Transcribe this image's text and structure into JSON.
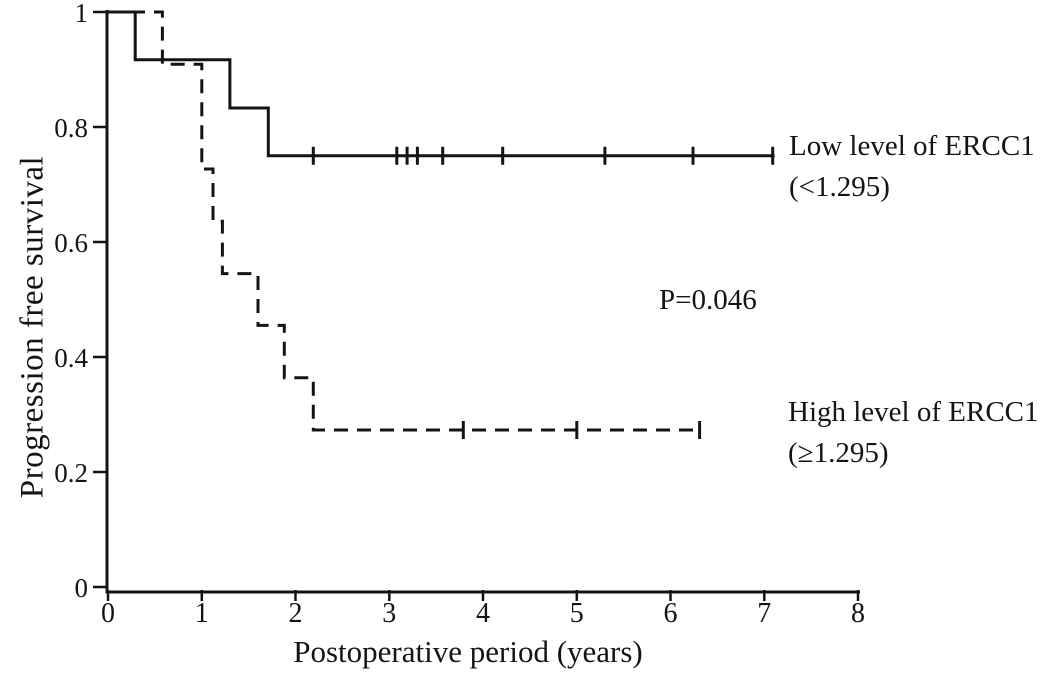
{
  "chart_data": {
    "type": "line",
    "subtype": "kaplan-meier-step",
    "title": "",
    "xlabel": "Postoperative period (years)",
    "ylabel": "Progression free survival",
    "xlim": [
      0,
      8
    ],
    "ylim": [
      0,
      1
    ],
    "x_ticks": [
      0,
      1,
      2,
      3,
      4,
      5,
      6,
      7,
      8
    ],
    "x_tick_labels": [
      "0",
      "1",
      "2",
      "3",
      "4",
      "5",
      "6",
      "7",
      "8"
    ],
    "y_ticks": [
      0,
      0.2,
      0.4,
      0.6,
      0.8,
      1
    ],
    "y_tick_labels": [
      "0",
      "0.2",
      "0.4",
      "0.6",
      "0.8",
      "1"
    ],
    "grid": false,
    "legend_position": "right-of-curves",
    "line_color": "#141414",
    "series": [
      {
        "name": "Low level of ERCC1 (<1.295)",
        "style": "solid",
        "steps": [
          [
            0,
            1
          ],
          [
            0.29,
            1
          ],
          [
            0.29,
            0.917
          ],
          [
            1.3,
            0.917
          ],
          [
            1.3,
            0.833
          ],
          [
            1.71,
            0.833
          ],
          [
            1.71,
            0.75
          ],
          [
            7.11,
            0.75
          ]
        ],
        "censor_level": 0.75,
        "censor_times": [
          2.19,
          3.08,
          3.19,
          3.3,
          3.57,
          4.21,
          5.3,
          6.24,
          7.09
        ]
      },
      {
        "name": "High level of ERCC1 (≥1.295)",
        "style": "dashed",
        "steps": [
          [
            0,
            1
          ],
          [
            0.58,
            1
          ],
          [
            0.58,
            0.909
          ],
          [
            1.0,
            0.909
          ],
          [
            1.0,
            0.727
          ],
          [
            1.12,
            0.727
          ],
          [
            1.12,
            0.636
          ],
          [
            1.22,
            0.636
          ],
          [
            1.22,
            0.545
          ],
          [
            1.6,
            0.545
          ],
          [
            1.6,
            0.455
          ],
          [
            1.88,
            0.455
          ],
          [
            1.88,
            0.364
          ],
          [
            2.19,
            0.364
          ],
          [
            2.19,
            0.273
          ],
          [
            6.31,
            0.273
          ]
        ],
        "censor_level": 0.273,
        "censor_times": [
          3.79,
          5.0,
          6.31
        ]
      }
    ]
  },
  "annotations": {
    "p_value": "P=0.046",
    "low_label_line1": "Low level of ERCC1",
    "low_label_line2": "(<1.295)",
    "high_label_line1": "High level of ERCC1",
    "high_label_line2": "(≥1.295)"
  }
}
